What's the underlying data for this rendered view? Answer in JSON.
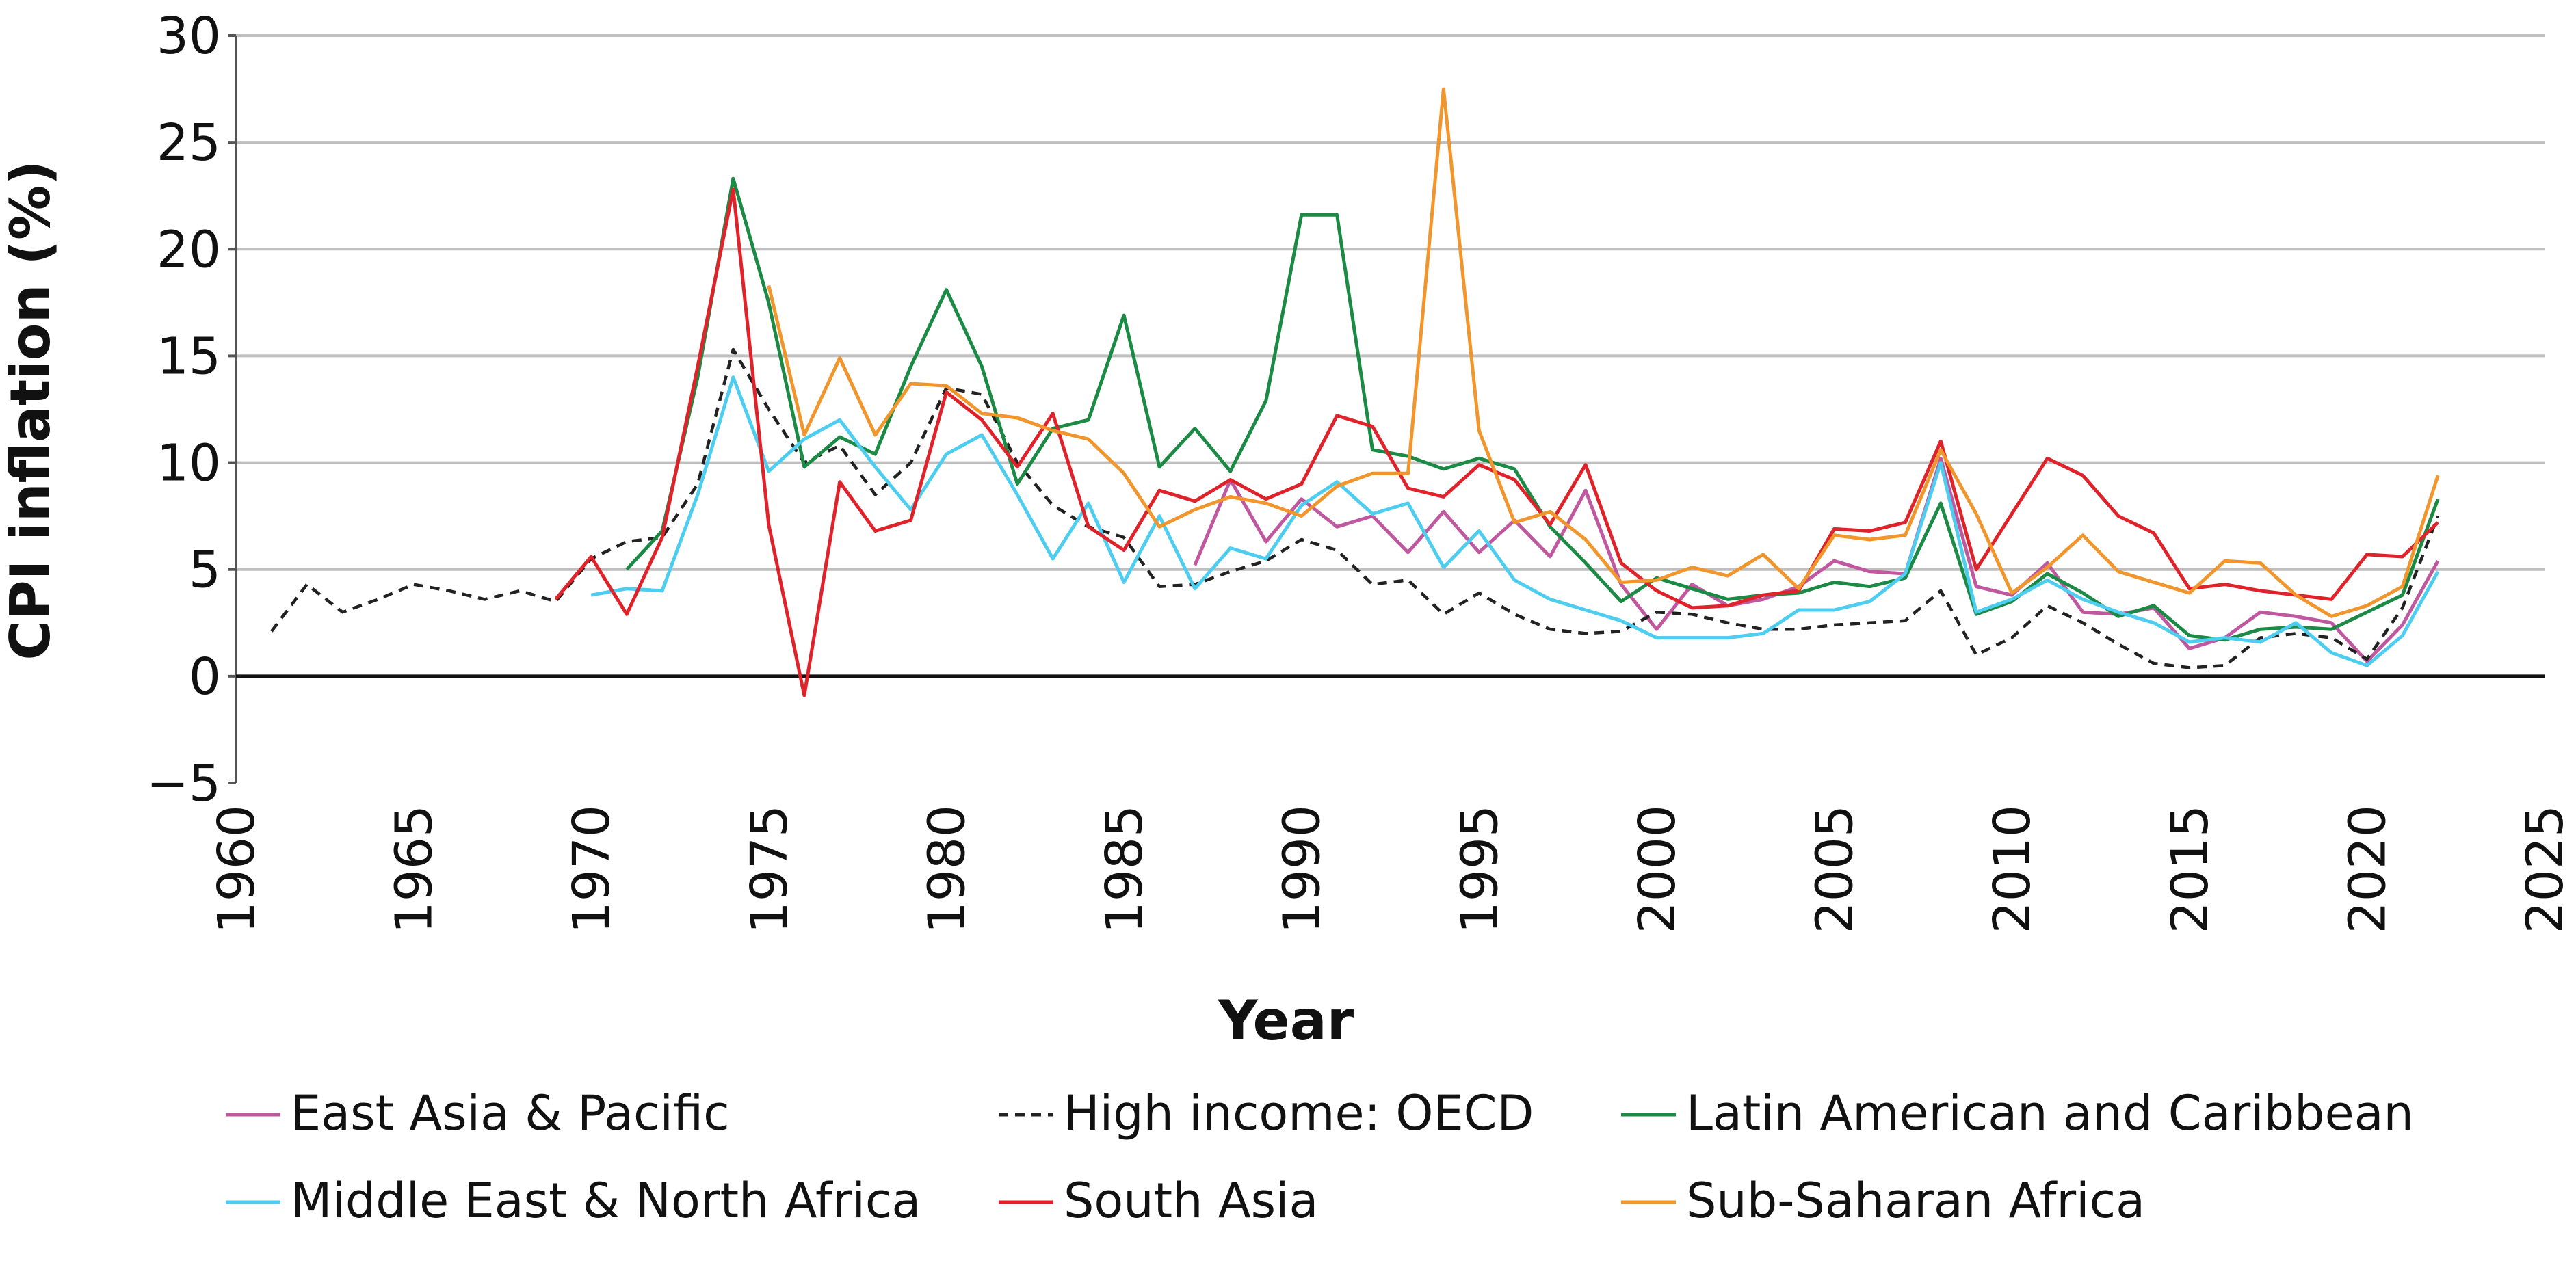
{
  "chart_data": {
    "type": "line",
    "xlabel": "Year",
    "ylabel": "CPI inflation (%)",
    "xlim": [
      1960,
      2025
    ],
    "ylim": [
      -5,
      30
    ],
    "xticks": [
      "1960",
      "1965",
      "1970",
      "1975",
      "1980",
      "1985",
      "1990",
      "1995",
      "2000",
      "2005",
      "2010",
      "2015",
      "2020",
      "2025"
    ],
    "yticks": [
      "30",
      "25",
      "20",
      "15",
      "10",
      "5",
      "0",
      "−5"
    ],
    "grid": true,
    "legend_position": "bottom",
    "series": [
      {
        "name": "East Asia & Pacific",
        "color": "#C0589F",
        "dash": false,
        "points": [
          [
            1987,
            5.2
          ],
          [
            1988,
            9.2
          ],
          [
            1989,
            6.3
          ],
          [
            1990,
            8.3
          ],
          [
            1991,
            7.0
          ],
          [
            1992,
            7.5
          ],
          [
            1993,
            5.8
          ],
          [
            1994,
            7.7
          ],
          [
            1995,
            5.8
          ],
          [
            1996,
            7.3
          ],
          [
            1997,
            5.6
          ],
          [
            1998,
            8.7
          ],
          [
            1999,
            4.3
          ],
          [
            2000,
            2.2
          ],
          [
            2001,
            4.3
          ],
          [
            2002,
            3.3
          ],
          [
            2003,
            3.6
          ],
          [
            2004,
            4.2
          ],
          [
            2005,
            5.4
          ],
          [
            2006,
            4.9
          ],
          [
            2007,
            4.8
          ],
          [
            2008,
            10.2
          ],
          [
            2009,
            4.2
          ],
          [
            2010,
            3.8
          ],
          [
            2011,
            5.3
          ],
          [
            2012,
            3.0
          ],
          [
            2013,
            2.9
          ],
          [
            2014,
            3.2
          ],
          [
            2015,
            1.3
          ],
          [
            2016,
            1.8
          ],
          [
            2017,
            3.0
          ],
          [
            2018,
            2.8
          ],
          [
            2019,
            2.5
          ],
          [
            2020,
            0.7
          ],
          [
            2021,
            2.4
          ],
          [
            2022,
            5.4
          ]
        ]
      },
      {
        "name": "High income: OECD",
        "color": "#222222",
        "dash": true,
        "points": [
          [
            1961,
            2.1
          ],
          [
            1962,
            4.3
          ],
          [
            1963,
            3.0
          ],
          [
            1964,
            3.6
          ],
          [
            1965,
            4.3
          ],
          [
            1966,
            4.0
          ],
          [
            1967,
            3.6
          ],
          [
            1968,
            4.0
          ],
          [
            1969,
            3.5
          ],
          [
            1970,
            5.5
          ],
          [
            1971,
            6.3
          ],
          [
            1972,
            6.5
          ],
          [
            1973,
            9.0
          ],
          [
            1974,
            15.3
          ],
          [
            1975,
            12.5
          ],
          [
            1976,
            10.0
          ],
          [
            1977,
            10.8
          ],
          [
            1978,
            8.5
          ],
          [
            1979,
            10.0
          ],
          [
            1980,
            13.5
          ],
          [
            1981,
            13.2
          ],
          [
            1982,
            10.0
          ],
          [
            1983,
            8.0
          ],
          [
            1984,
            7.0
          ],
          [
            1985,
            6.5
          ],
          [
            1986,
            4.2
          ],
          [
            1987,
            4.3
          ],
          [
            1988,
            4.9
          ],
          [
            1989,
            5.4
          ],
          [
            1990,
            6.4
          ],
          [
            1991,
            5.9
          ],
          [
            1992,
            4.3
          ],
          [
            1993,
            4.5
          ],
          [
            1994,
            2.9
          ],
          [
            1995,
            3.9
          ],
          [
            1996,
            2.9
          ],
          [
            1997,
            2.2
          ],
          [
            1998,
            2.0
          ],
          [
            1999,
            2.1
          ],
          [
            2000,
            3.0
          ],
          [
            2001,
            2.9
          ],
          [
            2002,
            2.5
          ],
          [
            2003,
            2.2
          ],
          [
            2004,
            2.2
          ],
          [
            2005,
            2.4
          ],
          [
            2006,
            2.5
          ],
          [
            2007,
            2.6
          ],
          [
            2008,
            4.0
          ],
          [
            2009,
            1.0
          ],
          [
            2010,
            1.8
          ],
          [
            2011,
            3.3
          ],
          [
            2012,
            2.5
          ],
          [
            2013,
            1.5
          ],
          [
            2014,
            0.6
          ],
          [
            2015,
            0.4
          ],
          [
            2016,
            0.5
          ],
          [
            2017,
            1.8
          ],
          [
            2018,
            2.0
          ],
          [
            2019,
            1.8
          ],
          [
            2020,
            0.8
          ],
          [
            2021,
            3.2
          ],
          [
            2022,
            7.5
          ]
        ]
      },
      {
        "name": "Latin American and Caribbean",
        "color": "#1B8A45",
        "dash": false,
        "points": [
          [
            1971,
            5.0
          ],
          [
            1972,
            6.8
          ],
          [
            1973,
            14.0
          ],
          [
            1974,
            23.3
          ],
          [
            1975,
            17.5
          ],
          [
            1976,
            9.8
          ],
          [
            1977,
            11.2
          ],
          [
            1978,
            10.4
          ],
          [
            1979,
            14.5
          ],
          [
            1980,
            18.1
          ],
          [
            1981,
            14.5
          ],
          [
            1982,
            9.0
          ],
          [
            1983,
            11.6
          ],
          [
            1984,
            12.0
          ],
          [
            1985,
            16.9
          ],
          [
            1986,
            9.8
          ],
          [
            1987,
            11.6
          ],
          [
            1988,
            9.6
          ],
          [
            1989,
            12.9
          ],
          [
            1990,
            21.6
          ],
          [
            1991,
            21.6
          ],
          [
            1992,
            10.6
          ],
          [
            1993,
            10.3
          ],
          [
            1994,
            9.7
          ],
          [
            1995,
            10.2
          ],
          [
            1996,
            9.7
          ],
          [
            1997,
            7.0
          ],
          [
            1998,
            5.3
          ],
          [
            1999,
            3.5
          ],
          [
            2000,
            4.6
          ],
          [
            2001,
            4.1
          ],
          [
            2002,
            3.6
          ],
          [
            2003,
            3.8
          ],
          [
            2004,
            3.9
          ],
          [
            2005,
            4.4
          ],
          [
            2006,
            4.2
          ],
          [
            2007,
            4.6
          ],
          [
            2008,
            8.1
          ],
          [
            2009,
            2.9
          ],
          [
            2010,
            3.5
          ],
          [
            2011,
            4.8
          ],
          [
            2012,
            3.9
          ],
          [
            2013,
            2.8
          ],
          [
            2014,
            3.3
          ],
          [
            2015,
            1.9
          ],
          [
            2016,
            1.7
          ],
          [
            2017,
            2.2
          ],
          [
            2018,
            2.3
          ],
          [
            2019,
            2.2
          ],
          [
            2020,
            3.0
          ],
          [
            2021,
            3.8
          ],
          [
            2022,
            8.3
          ]
        ]
      },
      {
        "name": "Middle East & North Africa",
        "color": "#4DCDEF",
        "dash": false,
        "points": [
          [
            1970,
            3.8
          ],
          [
            1971,
            4.1
          ],
          [
            1972,
            4.0
          ],
          [
            1973,
            8.5
          ],
          [
            1974,
            14.0
          ],
          [
            1975,
            9.6
          ],
          [
            1976,
            11.1
          ],
          [
            1977,
            12.0
          ],
          [
            1978,
            9.8
          ],
          [
            1979,
            7.8
          ],
          [
            1980,
            10.4
          ],
          [
            1981,
            11.3
          ],
          [
            1982,
            8.5
          ],
          [
            1983,
            5.5
          ],
          [
            1984,
            8.1
          ],
          [
            1985,
            4.4
          ],
          [
            1986,
            7.5
          ],
          [
            1987,
            4.1
          ],
          [
            1988,
            6.0
          ],
          [
            1989,
            5.5
          ],
          [
            1990,
            8.0
          ],
          [
            1991,
            9.1
          ],
          [
            1992,
            7.6
          ],
          [
            1993,
            8.1
          ],
          [
            1994,
            5.1
          ],
          [
            1995,
            6.8
          ],
          [
            1996,
            4.5
          ],
          [
            1997,
            3.6
          ],
          [
            1998,
            3.1
          ],
          [
            1999,
            2.6
          ],
          [
            2000,
            1.8
          ],
          [
            2001,
            1.8
          ],
          [
            2002,
            1.8
          ],
          [
            2003,
            2.0
          ],
          [
            2004,
            3.1
          ],
          [
            2005,
            3.1
          ],
          [
            2006,
            3.5
          ],
          [
            2007,
            4.8
          ],
          [
            2008,
            10.0
          ],
          [
            2009,
            3.0
          ],
          [
            2010,
            3.6
          ],
          [
            2011,
            4.5
          ],
          [
            2012,
            3.6
          ],
          [
            2013,
            3.0
          ],
          [
            2014,
            2.5
          ],
          [
            2015,
            1.6
          ],
          [
            2016,
            1.8
          ],
          [
            2017,
            1.6
          ],
          [
            2018,
            2.5
          ],
          [
            2019,
            1.1
          ],
          [
            2020,
            0.5
          ],
          [
            2021,
            1.9
          ],
          [
            2022,
            4.9
          ]
        ]
      },
      {
        "name": "South Asia",
        "color": "#E0222A",
        "dash": false,
        "points": [
          [
            1969,
            3.6
          ],
          [
            1970,
            5.6
          ],
          [
            1971,
            2.9
          ],
          [
            1972,
            6.5
          ],
          [
            1973,
            14.5
          ],
          [
            1974,
            22.8
          ],
          [
            1975,
            7.1
          ],
          [
            1976,
            -0.9
          ],
          [
            1977,
            9.1
          ],
          [
            1978,
            6.8
          ],
          [
            1979,
            7.3
          ],
          [
            1980,
            13.3
          ],
          [
            1981,
            12.0
          ],
          [
            1982,
            9.8
          ],
          [
            1983,
            12.3
          ],
          [
            1984,
            7.0
          ],
          [
            1985,
            5.9
          ],
          [
            1986,
            8.7
          ],
          [
            1987,
            8.2
          ],
          [
            1988,
            9.2
          ],
          [
            1989,
            8.3
          ],
          [
            1990,
            9.0
          ],
          [
            1991,
            12.2
          ],
          [
            1992,
            11.7
          ],
          [
            1993,
            8.8
          ],
          [
            1994,
            8.4
          ],
          [
            1995,
            9.9
          ],
          [
            1996,
            9.2
          ],
          [
            1997,
            7.1
          ],
          [
            1998,
            9.9
          ],
          [
            1999,
            5.3
          ],
          [
            2000,
            4.0
          ],
          [
            2001,
            3.2
          ],
          [
            2002,
            3.3
          ],
          [
            2003,
            3.8
          ],
          [
            2004,
            4.0
          ],
          [
            2005,
            6.9
          ],
          [
            2006,
            6.8
          ],
          [
            2007,
            7.2
          ],
          [
            2008,
            11.0
          ],
          [
            2009,
            5.0
          ],
          [
            2010,
            7.6
          ],
          [
            2011,
            10.2
          ],
          [
            2012,
            9.4
          ],
          [
            2013,
            7.5
          ],
          [
            2014,
            6.7
          ],
          [
            2015,
            4.1
          ],
          [
            2016,
            4.3
          ],
          [
            2017,
            4.0
          ],
          [
            2018,
            3.8
          ],
          [
            2019,
            3.6
          ],
          [
            2020,
            5.7
          ],
          [
            2021,
            5.6
          ],
          [
            2022,
            7.2
          ]
        ]
      },
      {
        "name": "Sub-Saharan Africa",
        "color": "#F0962C",
        "dash": false,
        "points": [
          [
            1975,
            18.3
          ],
          [
            1976,
            11.3
          ],
          [
            1977,
            14.9
          ],
          [
            1978,
            11.3
          ],
          [
            1979,
            13.7
          ],
          [
            1980,
            13.6
          ],
          [
            1981,
            12.3
          ],
          [
            1982,
            12.1
          ],
          [
            1983,
            11.5
          ],
          [
            1984,
            11.1
          ],
          [
            1985,
            9.5
          ],
          [
            1986,
            7.0
          ],
          [
            1987,
            7.8
          ],
          [
            1988,
            8.4
          ],
          [
            1989,
            8.1
          ],
          [
            1990,
            7.5
          ],
          [
            1991,
            8.9
          ],
          [
            1992,
            9.5
          ],
          [
            1993,
            9.5
          ],
          [
            1994,
            27.5
          ],
          [
            1995,
            11.5
          ],
          [
            1996,
            7.2
          ],
          [
            1997,
            7.7
          ],
          [
            1998,
            6.4
          ],
          [
            1999,
            4.4
          ],
          [
            2000,
            4.5
          ],
          [
            2001,
            5.1
          ],
          [
            2002,
            4.7
          ],
          [
            2003,
            5.7
          ],
          [
            2004,
            4.1
          ],
          [
            2005,
            6.6
          ],
          [
            2006,
            6.4
          ],
          [
            2007,
            6.6
          ],
          [
            2008,
            10.6
          ],
          [
            2009,
            7.6
          ],
          [
            2010,
            3.9
          ],
          [
            2011,
            5.1
          ],
          [
            2012,
            6.6
          ],
          [
            2013,
            4.9
          ],
          [
            2014,
            4.4
          ],
          [
            2015,
            3.9
          ],
          [
            2016,
            5.4
          ],
          [
            2017,
            5.3
          ],
          [
            2018,
            3.8
          ],
          [
            2019,
            2.8
          ],
          [
            2020,
            3.3
          ],
          [
            2021,
            4.2
          ],
          [
            2022,
            9.4
          ]
        ]
      }
    ]
  }
}
